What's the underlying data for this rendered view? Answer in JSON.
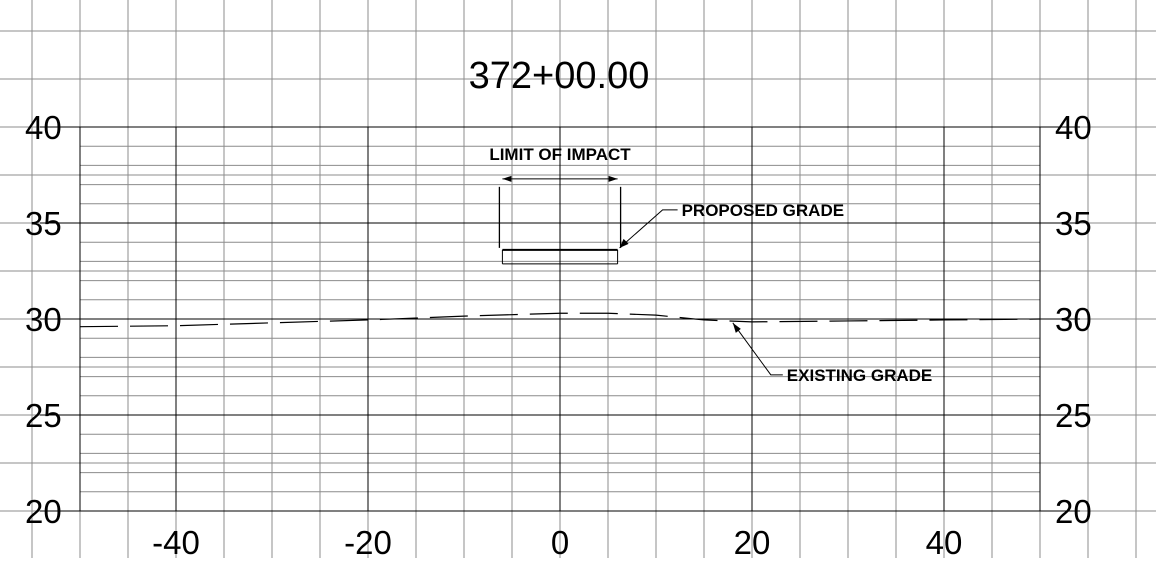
{
  "title": "372+00.00",
  "chart_data": {
    "type": "line",
    "title": "372+00.00",
    "xlabel": "",
    "ylabel": "",
    "xlim": [
      -50,
      50
    ],
    "ylim": [
      20,
      40
    ],
    "x_ticks": [
      {
        "value": -40,
        "label": "-40"
      },
      {
        "value": -20,
        "label": "-20"
      },
      {
        "value": 0,
        "label": "0"
      },
      {
        "value": 20,
        "label": "20"
      },
      {
        "value": 40,
        "label": "40"
      }
    ],
    "y_ticks": [
      {
        "value": 40,
        "label": "40"
      },
      {
        "value": 35,
        "label": "35"
      },
      {
        "value": 30,
        "label": "30"
      },
      {
        "value": 25,
        "label": "25"
      },
      {
        "value": 20,
        "label": "20"
      }
    ],
    "grid": true,
    "series": [
      {
        "name": "EXISTING GRADE",
        "style": "dashed",
        "x": [
          -50,
          -40,
          -30,
          -20,
          -10,
          0,
          5,
          10,
          15,
          20,
          30,
          40,
          50
        ],
        "y": [
          29.6,
          29.65,
          29.8,
          29.95,
          30.15,
          30.3,
          30.3,
          30.2,
          29.95,
          29.85,
          29.9,
          29.95,
          30.0
        ]
      },
      {
        "name": "PROPOSED GRADE",
        "style": "solid",
        "x": [
          -6,
          6
        ],
        "y": [
          33.6,
          33.6
        ]
      }
    ],
    "annotations": [
      {
        "id": "limit-of-impact",
        "text": "LIMIT OF IMPACT",
        "x_from": -6,
        "x_to": 6,
        "y": 37.3
      },
      {
        "id": "proposed-grade",
        "text": "PROPOSED GRADE",
        "target_x": 6,
        "target_y": 33.6
      },
      {
        "id": "existing-grade",
        "text": "EXISTING GRADE",
        "target_x": 18,
        "target_y": 29.8
      }
    ]
  },
  "colors": {
    "background": "#ffffff",
    "major_grid": "#000000",
    "minor_grid": "#8c8c8c",
    "line": "#000000"
  }
}
